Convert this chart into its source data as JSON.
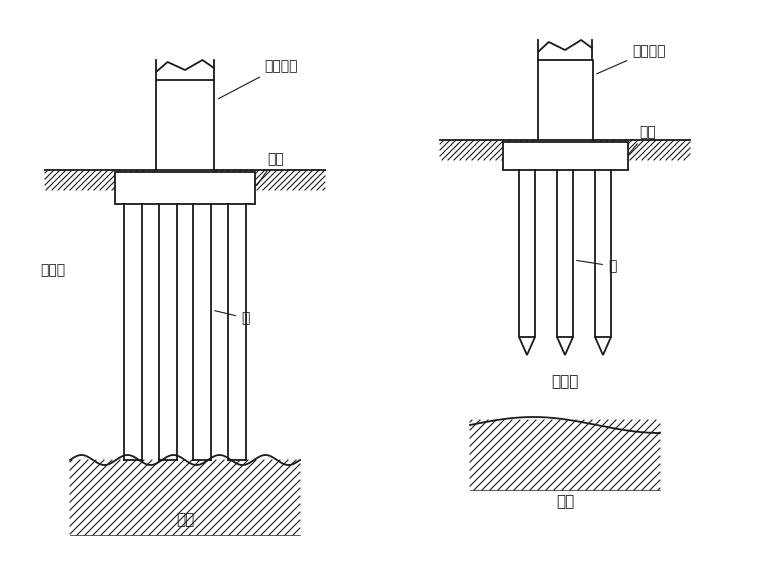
{
  "bg_color": "#ffffff",
  "line_color": "#1a1a1a",
  "text_color": "#1a1a1a",
  "fig_width": 7.6,
  "fig_height": 5.7,
  "font_size": 10,
  "labels": {
    "upper_struct": "上部结构",
    "cap_left": "承台",
    "cap_right": "承台",
    "pile_left": "桩",
    "pile_right": "桩",
    "soft_left": "软土层",
    "soft_right": "软土层",
    "hard_left": "硬层",
    "hard_right": "硬层"
  }
}
